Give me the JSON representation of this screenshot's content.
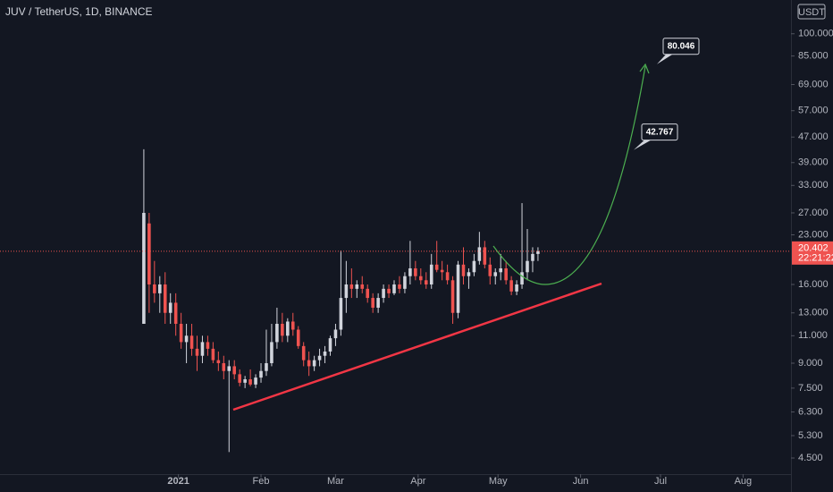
{
  "chart_data": {
    "type": "candlestick",
    "title": "JUV / TetherUS, 1D, BINANCE",
    "currency": "USDT",
    "countdown": "22:21:22",
    "log_scale": true,
    "grid": false,
    "up_color": "#d1d4dc",
    "down_color": "#ef5350",
    "xlim": [
      -67,
      230
    ],
    "ylim": [
      4,
      128
    ],
    "xticks": [
      {
        "value": 0,
        "label": "2021"
      },
      {
        "value": 31,
        "label": "Feb"
      },
      {
        "value": 59,
        "label": "Mar"
      },
      {
        "value": 90,
        "label": "Apr"
      },
      {
        "value": 120,
        "label": "May"
      },
      {
        "value": 151,
        "label": "Jun"
      },
      {
        "value": 181,
        "label": "Jul"
      },
      {
        "value": 212,
        "label": "Aug"
      }
    ],
    "yticks": [
      {
        "value": 100,
        "label": "100.000"
      },
      {
        "value": 85,
        "label": "85.000"
      },
      {
        "value": 69,
        "label": "69.000"
      },
      {
        "value": 57,
        "label": "57.000"
      },
      {
        "value": 47,
        "label": "47.000"
      },
      {
        "value": 39,
        "label": "39.000"
      },
      {
        "value": 33,
        "label": "33.000"
      },
      {
        "value": 27,
        "label": "27.000"
      },
      {
        "value": 23,
        "label": "23.000"
      },
      {
        "value": 16,
        "label": "16.000"
      },
      {
        "value": 13,
        "label": "13.000"
      },
      {
        "value": 11,
        "label": "11.000"
      },
      {
        "value": 9,
        "label": "9.000"
      },
      {
        "value": 7.5,
        "label": "7.500"
      },
      {
        "value": 6.3,
        "label": "6.300"
      },
      {
        "value": 5.3,
        "label": "5.300"
      },
      {
        "value": 4.5,
        "label": "4.500"
      }
    ],
    "annotations": [
      80.046,
      42.767
    ],
    "x": [
      -13,
      -11,
      -9,
      -7,
      -5,
      -3,
      -1,
      1,
      3,
      5,
      7,
      9,
      11,
      13,
      15,
      17,
      19,
      21,
      23,
      25,
      27,
      29,
      31,
      33,
      35,
      37,
      39,
      41,
      43,
      45,
      47,
      49,
      51,
      53,
      55,
      57,
      59,
      61,
      63,
      65,
      67,
      69,
      71,
      73,
      75,
      77,
      79,
      81,
      83,
      85,
      87,
      89,
      91,
      93,
      95,
      97,
      99,
      101,
      103,
      105,
      107,
      109,
      111,
      113,
      115,
      117,
      119,
      121,
      123,
      125,
      127,
      129,
      131,
      133,
      135
    ],
    "open": [
      12,
      25,
      16,
      15,
      16,
      13,
      14,
      12,
      10.5,
      11,
      10,
      9.5,
      10.5,
      10,
      9.2,
      9,
      8.5,
      8.8,
      8.3,
      7.8,
      8,
      7.7,
      8.1,
      8.5,
      9,
      10.5,
      12,
      11,
      12.2,
      11.5,
      10.2,
      9.2,
      8.8,
      9.2,
      9.5,
      9.8,
      10.8,
      11.5,
      14.5,
      16,
      15.5,
      16,
      15.5,
      14.5,
      13.5,
      14.5,
      15.5,
      15,
      16,
      15.5,
      17,
      18,
      17,
      16.5,
      16,
      18.5,
      17.8,
      17.5,
      16.5,
      13,
      18.5,
      17,
      17.5,
      19,
      21,
      18.5,
      17,
      17.5,
      18,
      16.5,
      15.2,
      16,
      17.5,
      19,
      20
    ],
    "high": [
      43,
      27,
      19,
      17,
      17.5,
      15,
      15,
      13,
      12,
      12,
      11,
      11,
      11,
      10.5,
      9.8,
      9.5,
      9.2,
      9.2,
      8.6,
      8.2,
      8.6,
      8.3,
      9,
      11.5,
      12,
      13.5,
      13,
      12.5,
      13,
      11.8,
      10.5,
      9.8,
      9.5,
      10,
      10.2,
      11,
      12,
      20.5,
      19,
      18,
      16.5,
      17,
      16,
      15,
      15,
      16,
      16,
      16.5,
      17,
      17.5,
      22,
      19,
      18,
      17.5,
      20,
      22,
      19,
      18.5,
      17,
      19,
      21,
      18,
      20,
      23.5,
      22,
      19.5,
      18,
      20,
      19,
      17,
      16.5,
      29,
      24,
      21,
      21
    ],
    "low": [
      12,
      13,
      14,
      13,
      12,
      12,
      11,
      10,
      9,
      9.5,
      8.5,
      9,
      9.5,
      9,
      8.5,
      8,
      4.7,
      8,
      7.6,
      7.5,
      7.6,
      7.5,
      7.8,
      8.2,
      8.8,
      10,
      10.5,
      10.5,
      11,
      10,
      8.8,
      8.2,
      8.5,
      8.8,
      9,
      9.5,
      10.2,
      11,
      13,
      14.5,
      14.5,
      15,
      14,
      13,
      13,
      14,
      14.5,
      14.8,
      15,
      15,
      16,
      16.5,
      16,
      15.5,
      15.5,
      17.5,
      16.5,
      16,
      12,
      12.5,
      16,
      15.5,
      17,
      18.5,
      18,
      16,
      16,
      16.5,
      16,
      14.8,
      14.8,
      15.5,
      16.5,
      17.5,
      19
    ],
    "close": [
      27,
      16,
      15,
      16,
      13,
      14,
      12,
      10.5,
      11,
      10,
      9.5,
      10.5,
      10,
      9.2,
      9,
      8.5,
      8.8,
      8.3,
      7.8,
      8,
      7.7,
      8.1,
      8.5,
      9,
      10.5,
      12,
      11,
      12.2,
      11.5,
      10.2,
      9.2,
      8.8,
      9.2,
      9.5,
      9.8,
      10.8,
      11.5,
      14.5,
      16,
      15.5,
      16,
      15.5,
      14.5,
      13.5,
      14.5,
      15.5,
      15,
      16,
      15.5,
      17,
      18,
      17,
      16.5,
      16,
      18.5,
      17.8,
      17.5,
      16.5,
      13,
      18.5,
      17,
      17.5,
      19,
      21,
      18.5,
      17,
      17.5,
      18,
      16.5,
      15.2,
      16,
      17.5,
      19,
      20,
      20.402
    ]
  }
}
